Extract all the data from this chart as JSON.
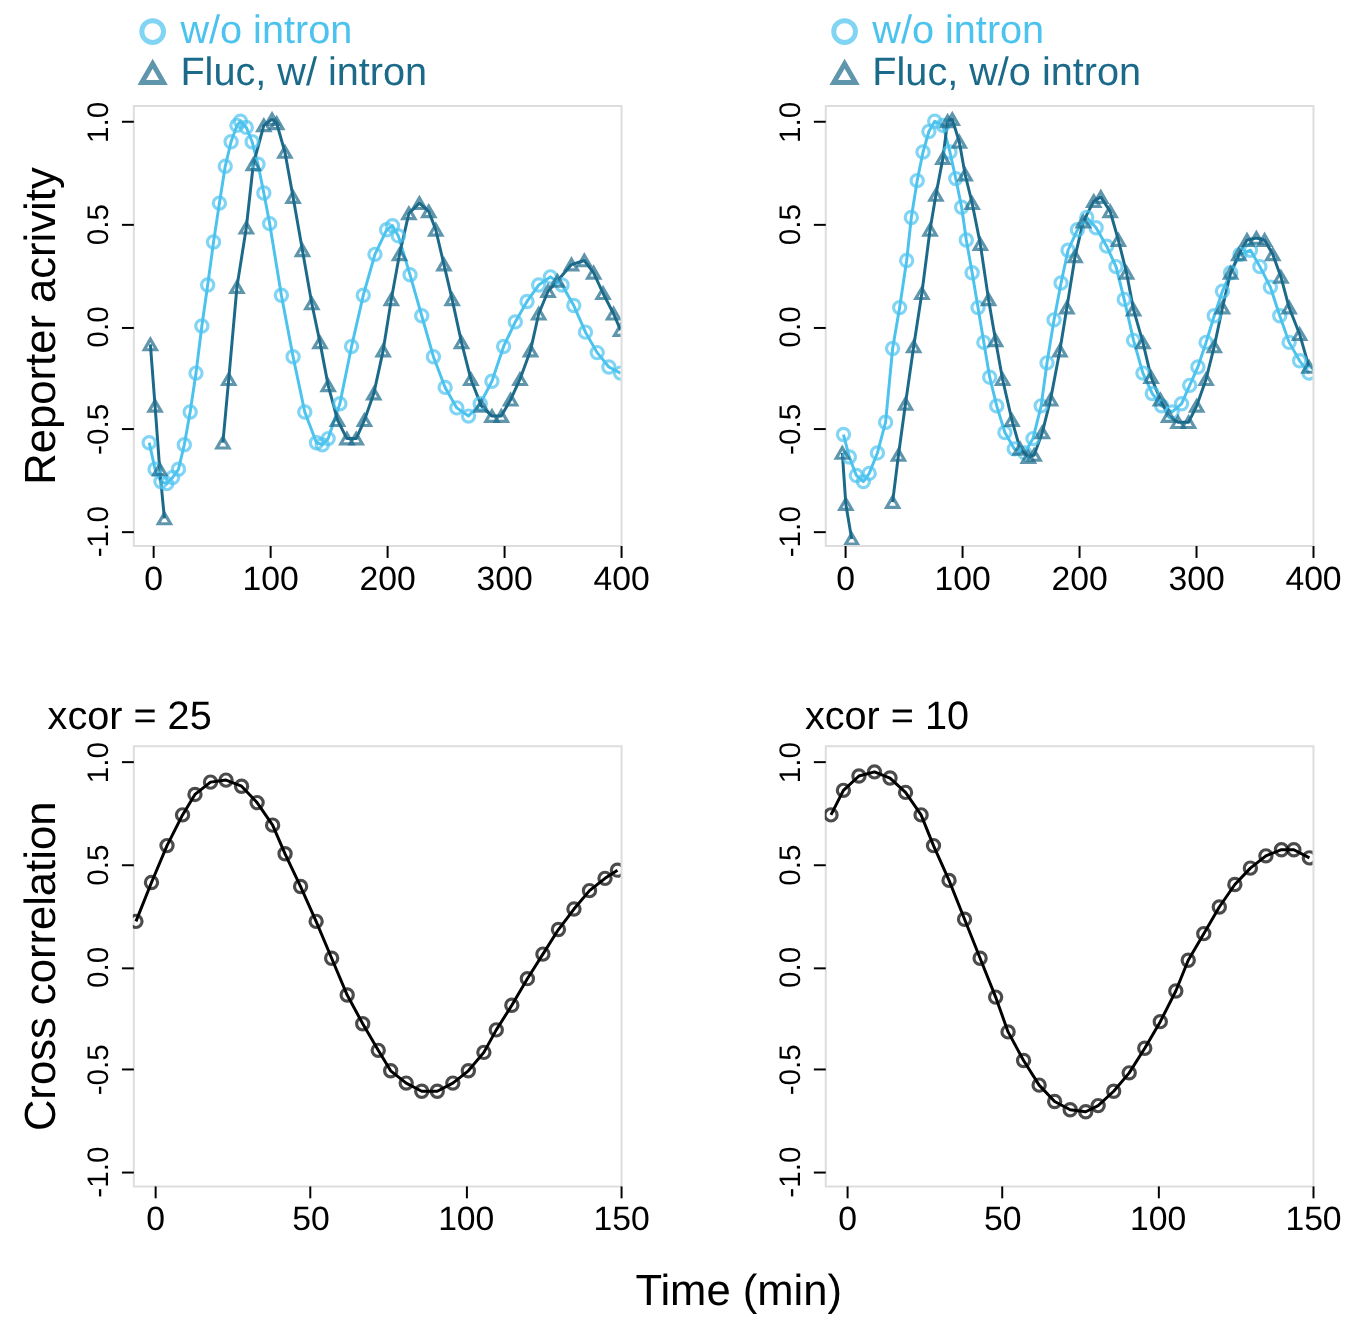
{
  "chart_data": [
    {
      "type": "line",
      "ylabel": "Reporter acrivity",
      "xlim": [
        -17,
        400
      ],
      "ylim": [
        -1.07,
        1.08
      ],
      "xticks": [
        0,
        100,
        200,
        300,
        400
      ],
      "yticks": [
        {
          "value": -1,
          "label": "-1.0"
        },
        {
          "value": -0.5,
          "label": "-0.5"
        },
        {
          "value": 0,
          "label": "0.0"
        },
        {
          "value": 0.5,
          "label": "0.5"
        },
        {
          "value": 1,
          "label": "1.0"
        }
      ],
      "grid": false,
      "legend": "top",
      "line_style": "solid",
      "series": [
        {
          "name": "w/o intron",
          "color": "#4cc3ee",
          "marker": "circle",
          "x": [
            -3,
            2,
            7,
            12,
            17,
            22,
            27,
            32,
            37,
            42,
            47,
            52,
            57,
            62,
            67,
            72,
            75,
            80,
            85,
            90,
            95,
            100,
            110,
            120,
            130,
            140,
            145,
            150,
            160,
            170,
            180,
            190,
            200,
            205,
            210,
            220,
            230,
            240,
            250,
            260,
            270,
            280,
            290,
            300,
            310,
            320,
            330,
            340,
            350,
            360,
            370,
            380,
            390,
            400
          ],
          "values": [
            -0.57,
            -0.7,
            -0.76,
            -0.77,
            -0.74,
            -0.7,
            -0.58,
            -0.42,
            -0.23,
            0.0,
            0.2,
            0.41,
            0.6,
            0.78,
            0.9,
            0.98,
            1.0,
            0.97,
            0.9,
            0.79,
            0.65,
            0.5,
            0.15,
            -0.15,
            -0.42,
            -0.57,
            -0.58,
            -0.55,
            -0.38,
            -0.1,
            0.15,
            0.35,
            0.47,
            0.49,
            0.44,
            0.25,
            0.05,
            -0.15,
            -0.3,
            -0.4,
            -0.44,
            -0.38,
            -0.27,
            -0.1,
            0.02,
            0.12,
            0.2,
            0.24,
            0.2,
            0.1,
            -0.03,
            -0.13,
            -0.2,
            -0.23
          ]
        },
        {
          "name": "Fluc, w/ intron",
          "color": "#1c6a8a",
          "marker": "triangle",
          "x": [
            -2,
            2,
            6,
            10,
            13,
            50,
            60,
            65,
            72,
            80,
            86,
            95,
            102,
            106,
            113,
            120,
            128,
            136,
            143,
            150,
            158,
            166,
            174,
            181,
            189,
            197,
            204,
            211,
            219,
            228,
            236,
            242,
            249,
            256,
            264,
            272,
            281,
            290,
            298,
            306,
            314,
            323,
            330,
            338,
            346,
            358,
            369,
            377,
            385,
            394,
            400
          ],
          "values": [
            -0.09,
            -0.39,
            -0.7,
            -0.94,
            null,
            null,
            -0.57,
            -0.26,
            0.19,
            0.48,
            0.79,
            0.98,
            1.01,
            0.99,
            0.85,
            0.63,
            0.37,
            0.11,
            -0.08,
            -0.29,
            -0.46,
            -0.55,
            -0.55,
            -0.46,
            -0.33,
            -0.12,
            0.13,
            0.35,
            0.55,
            0.6,
            0.56,
            0.47,
            0.3,
            0.13,
            -0.08,
            -0.26,
            -0.39,
            -0.44,
            -0.44,
            -0.36,
            -0.26,
            -0.12,
            0.06,
            0.17,
            0.22,
            0.3,
            0.32,
            0.26,
            0.16,
            0.06,
            -0.02
          ]
        }
      ]
    },
    {
      "type": "line",
      "xlim": [
        -17,
        400
      ],
      "ylim": [
        -1.07,
        1.08
      ],
      "xticks": [
        0,
        100,
        200,
        300,
        400
      ],
      "yticks": [
        {
          "value": -1,
          "label": "-1.0"
        },
        {
          "value": -0.5,
          "label": "-0.5"
        },
        {
          "value": 0,
          "label": "0.0"
        },
        {
          "value": 0.5,
          "label": "0.5"
        },
        {
          "value": 1,
          "label": "1.0"
        }
      ],
      "grid": false,
      "legend": "top",
      "line_style": "solid",
      "series": [
        {
          "name": "w/o intron",
          "color": "#4cc3ee",
          "marker": "circle",
          "x": [
            -1,
            4,
            10,
            16,
            21,
            28,
            35,
            41,
            47,
            53,
            57,
            62,
            67,
            72,
            77,
            84,
            90,
            95,
            100,
            104,
            109,
            114,
            119,
            124,
            130,
            137,
            145,
            154,
            161,
            168,
            173,
            179,
            185,
            191,
            199,
            207,
            215,
            224,
            232,
            239,
            247,
            255,
            263,
            271,
            280,
            288,
            295,
            302,
            309,
            316,
            323,
            330,
            338,
            347,
            355,
            364,
            372,
            380,
            389,
            397
          ],
          "values": [
            -0.53,
            -0.64,
            -0.73,
            -0.76,
            -0.72,
            -0.62,
            -0.47,
            -0.11,
            0.09,
            0.32,
            0.53,
            0.71,
            0.85,
            0.95,
            1.0,
            0.98,
            0.85,
            0.72,
            0.58,
            0.42,
            0.26,
            0.09,
            -0.08,
            -0.25,
            -0.39,
            -0.52,
            -0.6,
            -0.62,
            -0.55,
            -0.39,
            -0.18,
            0.03,
            0.21,
            0.37,
            0.47,
            0.53,
            0.48,
            0.39,
            0.29,
            0.13,
            -0.07,
            -0.23,
            -0.33,
            -0.39,
            -0.42,
            -0.38,
            -0.29,
            -0.2,
            -0.08,
            0.05,
            0.17,
            0.26,
            0.35,
            0.37,
            0.29,
            0.19,
            0.05,
            -0.08,
            -0.17,
            -0.23
          ]
        },
        {
          "name": "Fluc, w/o intron",
          "color": "#1c6a8a",
          "marker": "triangle",
          "x": [
            -2,
            1,
            6,
            9,
            39,
            41,
            46,
            52,
            59,
            66,
            73,
            78,
            84,
            88,
            92,
            98,
            103,
            109,
            116,
            123,
            129,
            135,
            143,
            150,
            157,
            162,
            169,
            176,
            184,
            190,
            197,
            204,
            213,
            219,
            227,
            234,
            241,
            247,
            255,
            262,
            270,
            277,
            285,
            294,
            301,
            309,
            316,
            323,
            330,
            337,
            344,
            352,
            359,
            366,
            373,
            380,
            389,
            397
          ],
          "values": [
            -0.62,
            -0.87,
            -1.04,
            null,
            null,
            -0.86,
            -0.63,
            -0.38,
            -0.1,
            0.16,
            0.47,
            0.64,
            0.82,
            1.0,
            1.01,
            0.9,
            0.74,
            0.6,
            0.4,
            0.13,
            -0.07,
            -0.26,
            -0.46,
            -0.6,
            -0.64,
            -0.63,
            -0.52,
            -0.36,
            -0.12,
            0.09,
            0.34,
            0.51,
            0.61,
            0.63,
            0.56,
            0.42,
            0.26,
            0.08,
            -0.08,
            -0.25,
            -0.36,
            -0.44,
            -0.47,
            -0.47,
            -0.39,
            -0.26,
            -0.1,
            0.09,
            0.26,
            0.35,
            0.42,
            0.43,
            0.42,
            0.35,
            0.24,
            0.09,
            -0.04,
            -0.2
          ]
        }
      ]
    },
    {
      "type": "line",
      "title": "xcor = 25",
      "ylabel": "Cross correlation",
      "xlabel": "Time (min)",
      "xlim": [
        -7,
        150
      ],
      "ylim": [
        -1.07,
        1.08
      ],
      "xticks": [
        0,
        50,
        100,
        150
      ],
      "yticks": [
        {
          "value": -1,
          "label": "-1.0"
        },
        {
          "value": -0.5,
          "label": "-0.5"
        },
        {
          "value": 0,
          "label": "0.0"
        },
        {
          "value": 0.5,
          "label": "0.5"
        },
        {
          "value": 1,
          "label": "1.0"
        }
      ],
      "grid": false,
      "marker": "circle",
      "line_style": "solid",
      "series": [
        {
          "color": "#000000",
          "x": [
            -6,
            -1,
            4,
            9,
            13,
            18,
            23,
            28,
            33,
            38,
            42,
            47,
            52,
            57,
            62,
            67,
            72,
            76,
            81,
            86,
            91,
            96,
            101,
            106,
            110,
            115,
            120,
            125,
            130,
            135,
            140,
            145,
            149
          ],
          "values": [
            0.22,
            0.41,
            0.59,
            0.74,
            0.84,
            0.9,
            0.91,
            0.88,
            0.8,
            0.69,
            0.55,
            0.39,
            0.22,
            0.04,
            -0.14,
            -0.28,
            -0.41,
            -0.51,
            -0.57,
            -0.61,
            -0.61,
            -0.57,
            -0.51,
            -0.42,
            -0.31,
            -0.19,
            -0.06,
            0.06,
            0.18,
            0.28,
            0.37,
            0.43,
            0.47
          ]
        }
      ]
    },
    {
      "type": "line",
      "title": "xcor = 10",
      "xlim": [
        -7,
        150
      ],
      "ylim": [
        -1.07,
        1.08
      ],
      "xticks": [
        0,
        50,
        100,
        150
      ],
      "yticks": [
        {
          "value": -1,
          "label": "-1.0"
        },
        {
          "value": -0.5,
          "label": "-0.5"
        },
        {
          "value": 0,
          "label": "0.0"
        },
        {
          "value": 0.5,
          "label": "0.5"
        },
        {
          "value": 1,
          "label": "1.0"
        }
      ],
      "grid": false,
      "marker": "circle",
      "line_style": "solid",
      "series": [
        {
          "color": "#000000",
          "x": [
            -5,
            -1,
            4,
            9,
            14,
            19,
            24,
            28,
            33,
            38,
            43,
            48,
            52,
            57,
            62,
            67,
            72,
            77,
            81,
            86,
            91,
            96,
            101,
            106,
            110,
            115,
            120,
            125,
            130,
            135,
            140,
            144,
            149
          ],
          "values": [
            0.74,
            0.86,
            0.93,
            0.95,
            0.92,
            0.85,
            0.74,
            0.59,
            0.42,
            0.23,
            0.04,
            -0.15,
            -0.32,
            -0.46,
            -0.58,
            -0.66,
            -0.7,
            -0.71,
            -0.68,
            -0.61,
            -0.52,
            -0.4,
            -0.27,
            -0.12,
            0.03,
            0.16,
            0.29,
            0.4,
            0.48,
            0.54,
            0.57,
            0.57,
            0.53
          ]
        }
      ]
    }
  ]
}
